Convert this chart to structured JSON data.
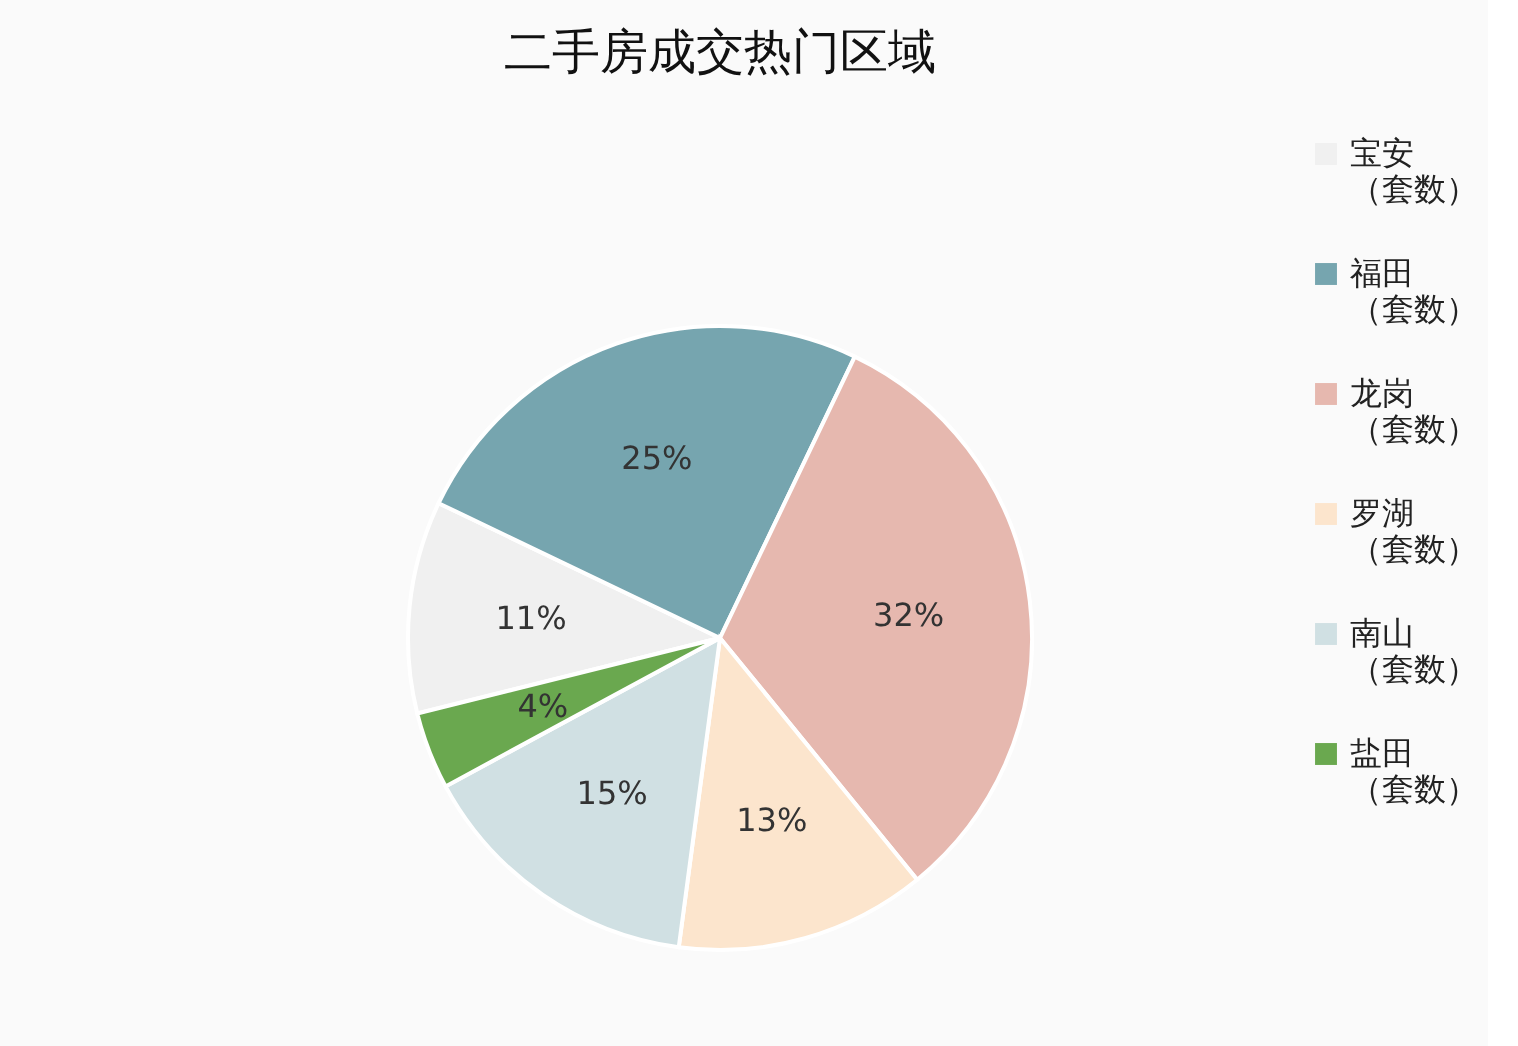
{
  "chart_data": {
    "type": "pie",
    "title": "二手房成交热门区域",
    "categories": [
      "宝安（套数）",
      "福田（套数）",
      "龙岗（套数）",
      "罗湖（套数）",
      "南山（套数）",
      "盐田（套数）"
    ],
    "values": [
      11,
      25,
      32,
      13,
      15,
      4
    ],
    "colors": [
      "#f0f0f0",
      "#76a5af",
      "#e6b8af",
      "#fce5cd",
      "#d0e0e3",
      "#6aa84f"
    ],
    "value_labels": [
      "11%",
      "25%",
      "32%",
      "13%",
      "15%",
      "4%"
    ],
    "legend": "top right"
  }
}
